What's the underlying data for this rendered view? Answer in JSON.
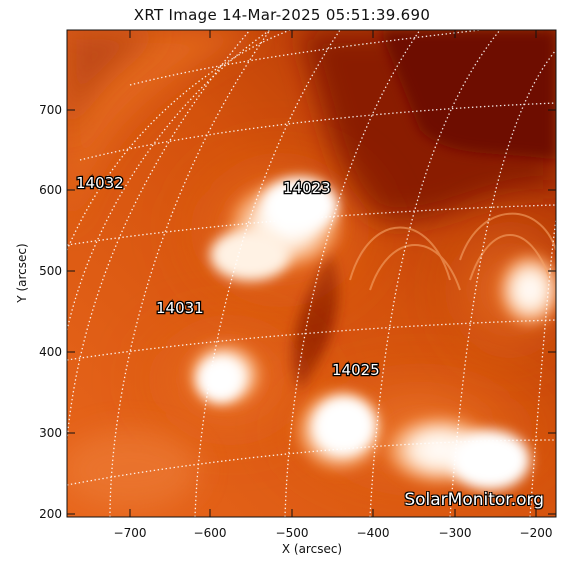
{
  "title": "XRT Image 14-Mar-2025 05:51:39.690",
  "axes": {
    "xlabel": "X (arcsec)",
    "ylabel": "Y (arcsec)",
    "x_ticks": [
      "−700",
      "−600",
      "−500",
      "−400",
      "−300",
      "−200"
    ],
    "y_ticks": [
      "700",
      "600",
      "500",
      "400",
      "300",
      "200"
    ]
  },
  "active_regions": [
    "14032",
    "14023",
    "14031",
    "14025"
  ],
  "watermark": "SolarMonitor.org",
  "colors": {
    "background_dark": "#7a1400",
    "mid_orange": "#d9520a",
    "bright": "#fff4e6",
    "grid": "#ffffff"
  }
}
